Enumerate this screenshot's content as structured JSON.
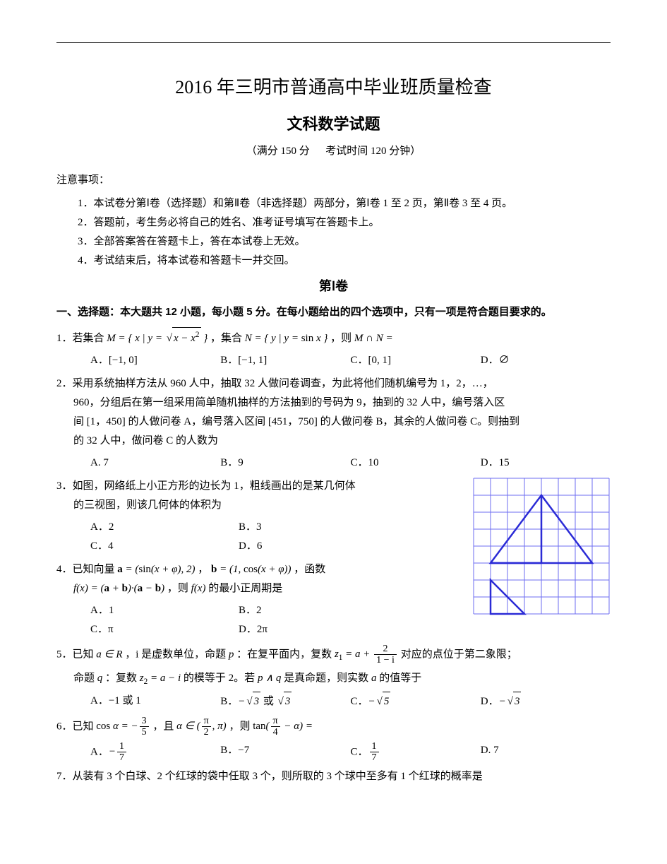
{
  "rule_color": "#000000",
  "header": {
    "title": "2016 年三明市普通高中毕业班质量检查",
    "subject": "文科数学试题",
    "info_left": "（满分 150 分",
    "info_right": "考试时间 120 分钟）"
  },
  "notice": {
    "label": "注意事项：",
    "items": [
      "1．本试卷分第Ⅰ卷（选择题）和第Ⅱ卷（非选择题）两部分，第Ⅰ卷 1 至 2 页，第Ⅱ卷 3 至 4 页。",
      "2．答题前，考生务必将自己的姓名、准考证号填写在答题卡上。",
      "3．全部答案答在答题卡上，答在本试卷上无效。",
      "4．考试结束后，将本试卷和答题卡一并交回。"
    ]
  },
  "part1": {
    "heading": "第Ⅰ卷",
    "section1_head": "一、选择题：本大题共 12 小题，每小题 5 分。在每小题给出的四个选项中，只有一项是符合题目要求的。"
  },
  "q1": {
    "stem_a": "1．若集合 ",
    "stem_b": "，集合 ",
    "stem_c": "，则 ",
    "stem_d": "",
    "A": "A．[−1, 0]",
    "B": "B．[−1, 1]",
    "C": "C．[0, 1]",
    "D": "D．∅"
  },
  "q2": {
    "line1": "2．采用系统抽样方法从 960 人中，抽取 32 人做问卷调查，为此将他们随机编号为 1，2，…，",
    "line2": "960，分组后在第一组采用简单随机抽样的方法抽到的号码为 9，抽到的 32 人中，编号落入区",
    "line3": "间 [1，450] 的人做问卷 A，编号落入区间 [451，750] 的人做问卷 B，其余的人做问卷 C。则抽到",
    "line4": "的 32 人中，做问卷 C 的人数为",
    "A": "A. 7",
    "B": "B．9",
    "C": "C．10",
    "D": "D．15"
  },
  "q3": {
    "line1": "3．如图，网络纸上小正方形的边长为 1，粗线画出的是某几何体",
    "line2": "的三视图，则该几何体的体积为",
    "A": "A．2",
    "B": "B．3",
    "C": "C．4",
    "D": "D．6"
  },
  "q4": {
    "stem_a": "4．已知向量 ",
    "stem_b": "，",
    "stem_c": "，函数",
    "line2a": "，则 ",
    "line2b": " 的最小正周期是",
    "A": "A．1",
    "B": "B．2",
    "C": "C．π",
    "D": "D．2π"
  },
  "q5": {
    "stem_a": "5．已知 ",
    "stem_b": "，i 是虚数单位，命题 ",
    "stem_c": "：在复平面内，复数 ",
    "stem_d": " 对应的点位于第二象限；",
    "line2a": "命题 ",
    "line2b": "：复数 ",
    "line2c": " 的模等于 2。若 ",
    "line2d": " 是真命题，则实数 ",
    "line2e": " 的值等于",
    "A": "A．−1 或 1",
    "B_pre": "B．",
    "B_mid": " 或 ",
    "C_pre": "C．",
    "D_pre": "D．"
  },
  "q6": {
    "stem_a": "6．已知 ",
    "stem_b": "，且 ",
    "stem_c": "，则 ",
    "stem_d": "",
    "A_pre": "A．",
    "B": "B．−7",
    "C_pre": "C．",
    "D": "D. 7"
  },
  "q7": {
    "stem": "7．从装有 3 个白球、2 个红球的袋中任取 3 个，则所取的 3 个球中至多有 1 个红球的概率是"
  },
  "figure": {
    "grid_color": "#6e6ef2",
    "line_color": "#2b2bd6",
    "bg": "#ffffff",
    "cols": 8,
    "rows": 8,
    "cell": 24,
    "tri1": [
      [
        1,
        5
      ],
      [
        4,
        1
      ],
      [
        7,
        5
      ]
    ],
    "tri1_inner": [
      [
        1,
        5
      ],
      [
        4,
        5
      ],
      [
        4,
        1
      ]
    ],
    "tri2": [
      [
        1,
        8
      ],
      [
        1,
        6
      ],
      [
        3,
        8
      ]
    ]
  }
}
